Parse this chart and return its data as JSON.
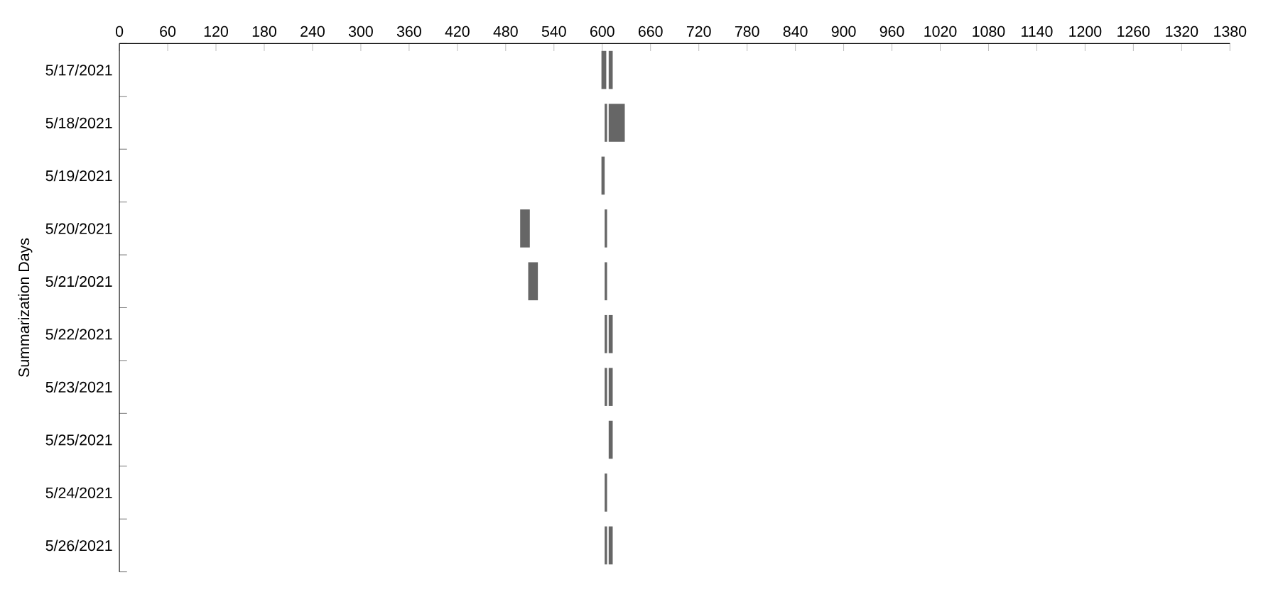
{
  "chart_data": {
    "type": "bar",
    "orientation": "horizontal",
    "ylabel": "Summarization Days",
    "categories": [
      "5/17/2021",
      "5/18/2021",
      "5/19/2021",
      "5/20/2021",
      "5/21/2021",
      "5/22/2021",
      "5/23/2021",
      "5/25/2021",
      "5/24/2021",
      "5/26/2021"
    ],
    "series": [
      {
        "color": "#666666",
        "base": [
          599,
          603,
          599,
          498,
          508,
          603,
          603,
          null,
          603,
          603
        ],
        "values": [
          6,
          3,
          4,
          12,
          12,
          3,
          3,
          null,
          3,
          3
        ]
      },
      {
        "color": "#666666",
        "base": [
          608,
          608,
          null,
          603,
          603,
          608,
          608,
          608,
          null,
          608
        ],
        "values": [
          5,
          20,
          null,
          3,
          3,
          5,
          5,
          5,
          null,
          5
        ]
      }
    ],
    "xlim": [
      0,
      1380
    ],
    "xticks": [
      0,
      60,
      120,
      180,
      240,
      300,
      360,
      420,
      480,
      540,
      600,
      660,
      720,
      780,
      840,
      900,
      960,
      1020,
      1080,
      1140,
      1200,
      1260,
      1320,
      1380
    ],
    "grid": false
  }
}
